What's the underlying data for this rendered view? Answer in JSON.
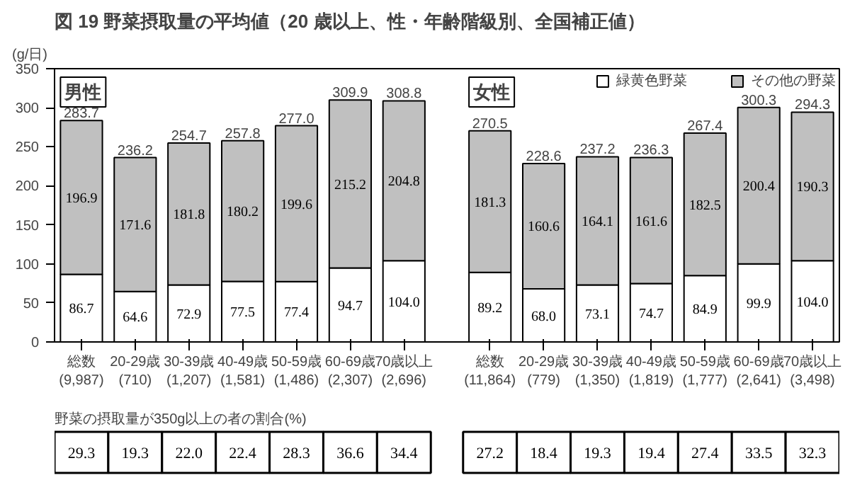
{
  "chart_data": [
    {
      "type": "bar",
      "title": "図 19  野菜摂取量の平均値（20 歳以上、性・年齢階級別、全国補正値）",
      "ylabel": "(g/日)",
      "categories": [
        "総数\n(9,987)",
        "20-29歳\n(710)",
        "30-39歳\n(1,207)",
        "40-49歳\n(1,581)",
        "50-59歳\n(1,486)",
        "60-69歳\n(2,307)",
        "70歳以上\n(2,696)",
        null,
        "総数\n(11,864)",
        "20-29歳\n(779)",
        "30-39歳\n(1,350)",
        "40-49歳\n(1,819)",
        "50-59歳\n(1,777)",
        "60-69歳\n(2,641)",
        "70歳以上\n(3,498)"
      ],
      "stacked": true,
      "data_labels": true,
      "series": [
        {
          "name": "緑黄色野菜",
          "color": "#ffffff",
          "values": [
            86.7,
            64.6,
            72.9,
            77.5,
            77.4,
            94.7,
            104.0,
            null,
            89.2,
            68.0,
            73.1,
            74.7,
            84.9,
            99.9,
            104.0
          ],
          "value_labels": [
            "86.7",
            "64.6",
            "72.9",
            "77.5",
            "77.4",
            "94.7",
            "104.0",
            null,
            "89.2",
            "68.0",
            "73.1",
            "74.7",
            "84.9",
            "99.9",
            "104.0"
          ]
        },
        {
          "name": "その他の野菜",
          "color": "#c0c0c0",
          "values": [
            196.9,
            171.6,
            181.8,
            180.2,
            199.6,
            215.2,
            204.8,
            null,
            181.3,
            160.6,
            164.1,
            161.6,
            182.5,
            200.4,
            190.3
          ]
        }
      ],
      "totals": [
        "283.7",
        "236.2",
        "254.7",
        "257.8",
        "277.0",
        "309.9",
        "308.8",
        null,
        "270.5",
        "228.6",
        "237.2",
        "236.3",
        "267.4",
        "300.3",
        "294.3"
      ],
      "annotations": [
        "男性",
        "女性"
      ],
      "ylim": [
        0,
        350
      ],
      "yticks": [
        0,
        50,
        100,
        150,
        200,
        250,
        300,
        350
      ],
      "grid": false,
      "legend": "top right"
    },
    {
      "type": "other",
      "title": "野菜の摂取量が350g以上の者の割合(%)",
      "annotations": [
        "29.3",
        "19.3",
        "22.0",
        "22.4",
        "28.3",
        "36.6",
        "34.4",
        "27.2",
        "18.4",
        "19.3",
        "19.4",
        "27.4",
        "33.5",
        "32.3"
      ]
    }
  ]
}
